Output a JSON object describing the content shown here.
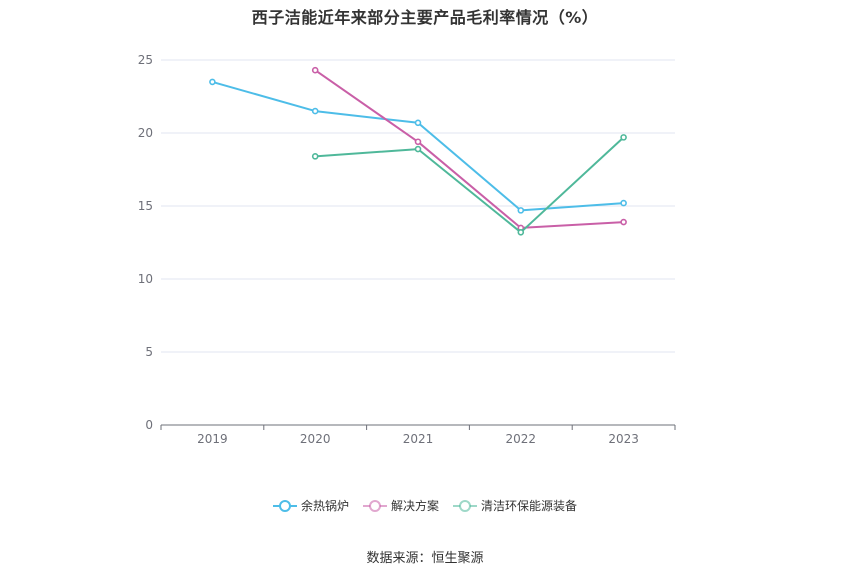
{
  "chart_data": {
    "type": "line",
    "title": "西子洁能近年来部分主要产品毛利率情况（%）",
    "x": [
      "2019",
      "2020",
      "2021",
      "2022",
      "2023"
    ],
    "ylim": [
      0,
      25
    ],
    "yticks": [
      "0",
      "5",
      "10",
      "15",
      "20",
      "25"
    ],
    "grid": "horizontal",
    "legend_position": "bottom",
    "series": [
      {
        "name": "余热锅炉",
        "color": "#4dbde8",
        "values": [
          23.5,
          21.5,
          20.7,
          14.7,
          15.2
        ]
      },
      {
        "name": "解决方案",
        "color": "#c95fa7",
        "values": [
          null,
          24.3,
          19.4,
          13.5,
          13.9
        ]
      },
      {
        "name": "清洁环保能源装备",
        "color": "#4fb89a",
        "values": [
          null,
          18.4,
          18.9,
          13.2,
          19.7
        ]
      }
    ]
  },
  "source": "数据来源：恒生聚源"
}
